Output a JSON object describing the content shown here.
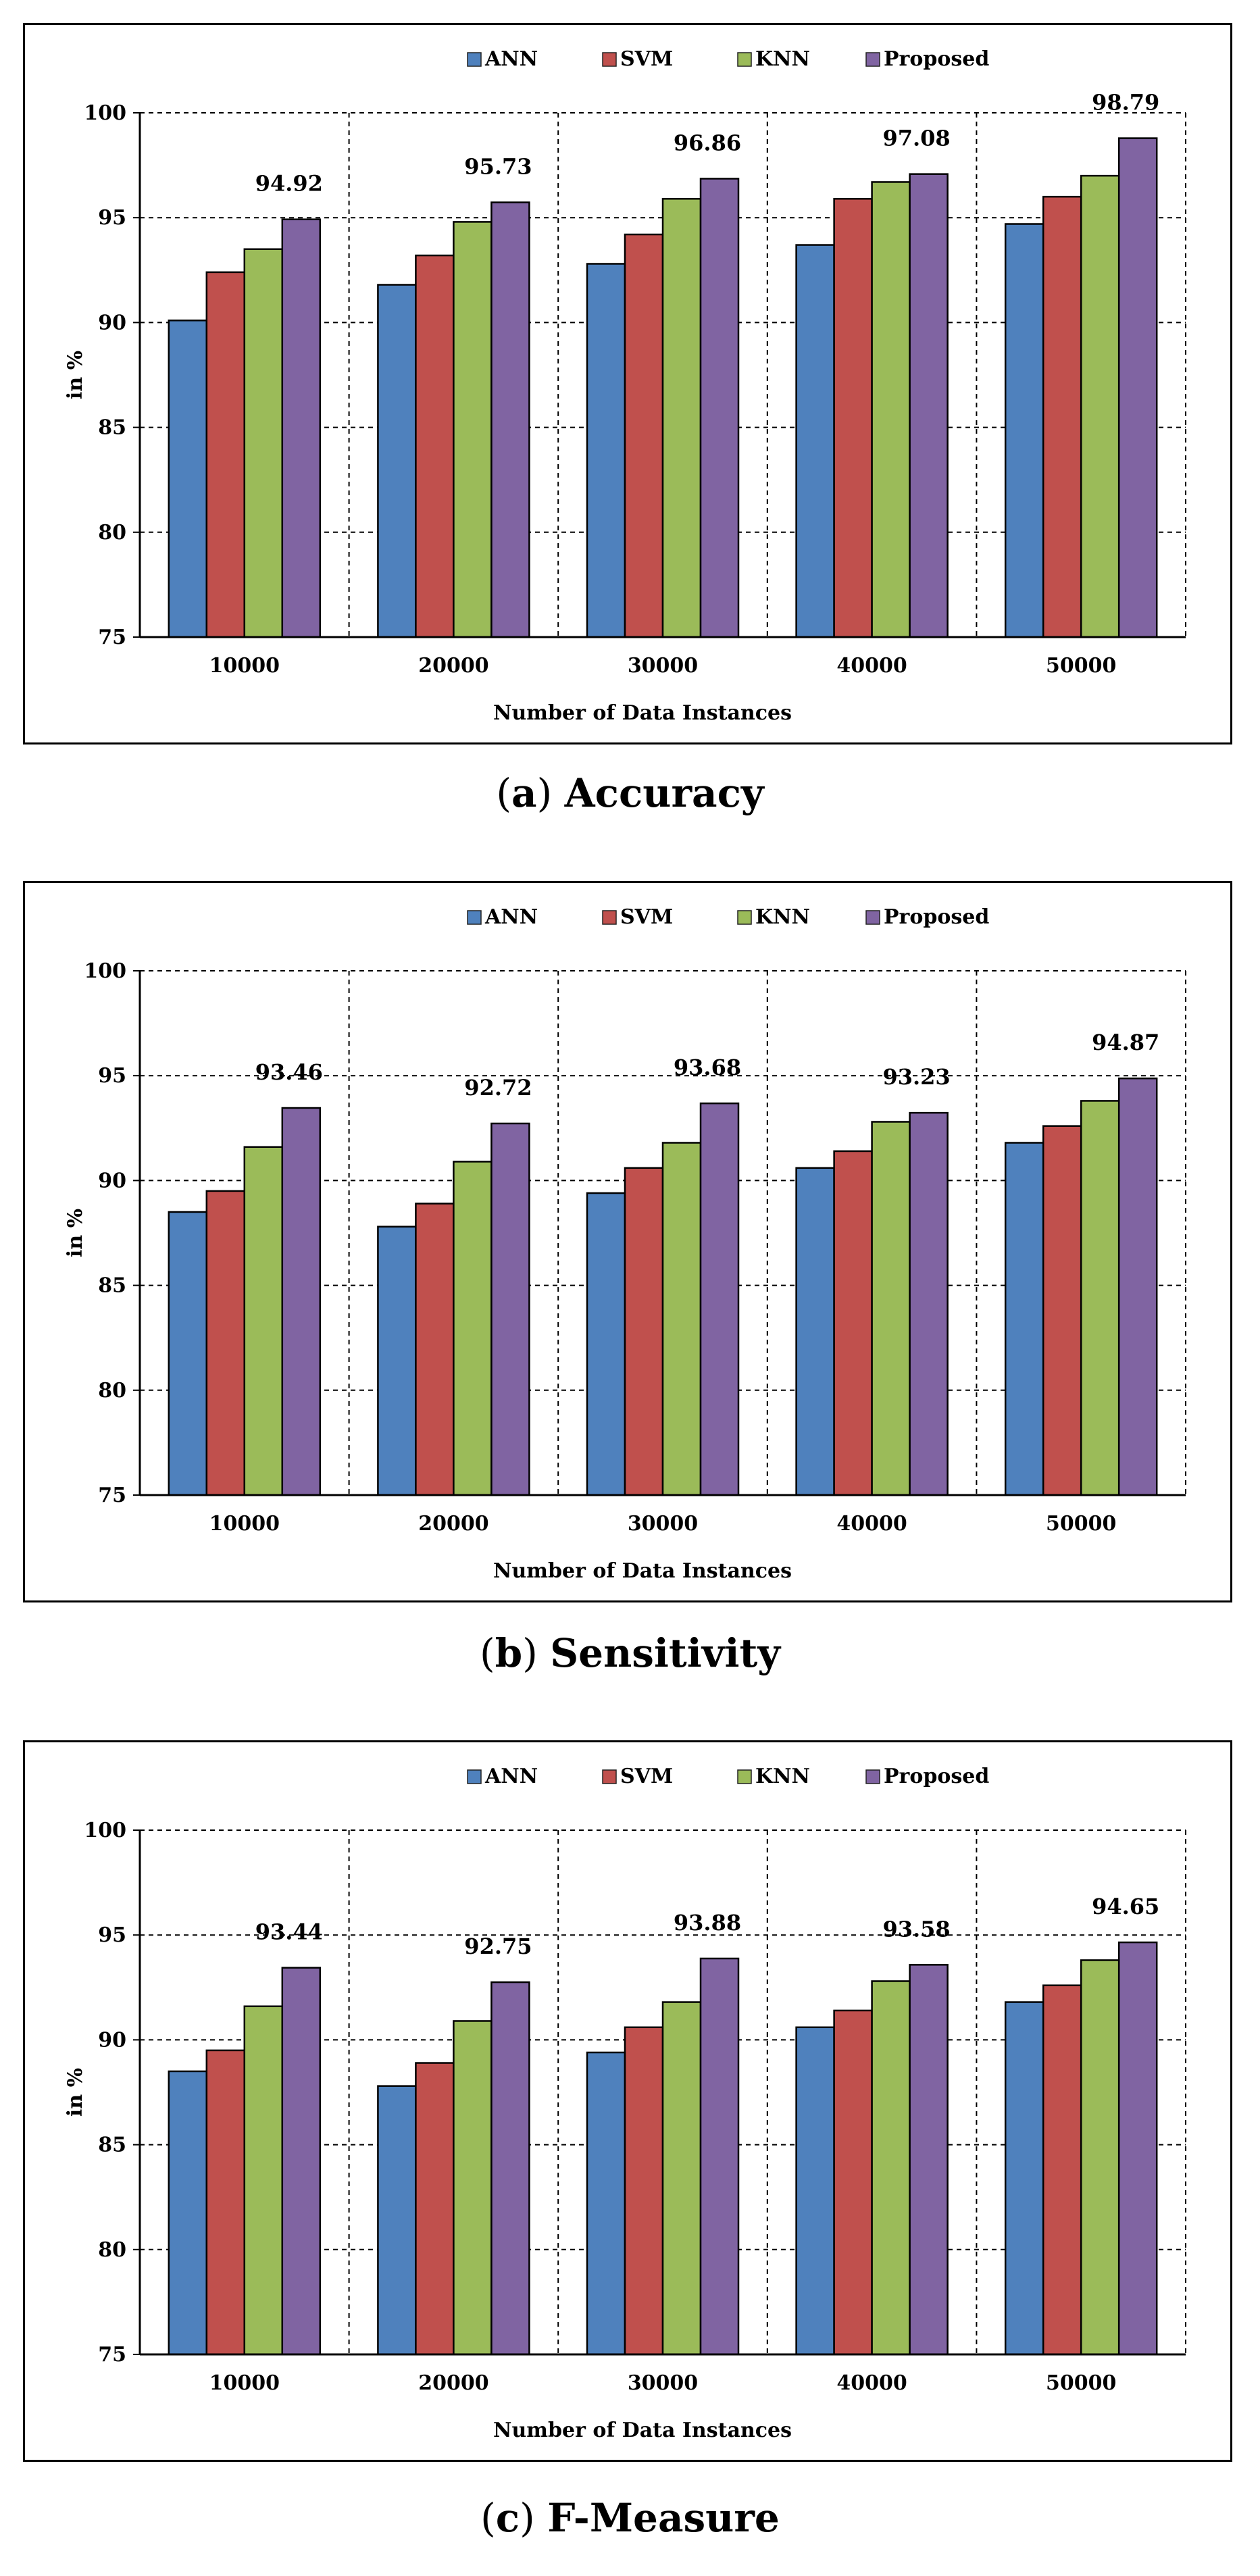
{
  "chart_data": [
    {
      "type": "bar",
      "caption_letter": "a",
      "caption_name": "Accuracy",
      "categories": [
        "10000",
        "20000",
        "30000",
        "40000",
        "50000"
      ],
      "series": [
        {
          "name": "ANN",
          "color": "#4f81bd",
          "values": [
            90.1,
            91.8,
            92.8,
            93.7,
            94.7
          ]
        },
        {
          "name": "SVM",
          "color": "#c0504d",
          "values": [
            92.4,
            93.2,
            94.2,
            95.9,
            96.0
          ]
        },
        {
          "name": "KNN",
          "color": "#9bbb59",
          "values": [
            93.5,
            94.8,
            95.9,
            96.7,
            97.0
          ]
        },
        {
          "name": "Proposed",
          "color": "#8064a2",
          "values": [
            94.92,
            95.73,
            96.86,
            97.08,
            98.79
          ]
        }
      ],
      "data_labels": [
        "94.92",
        "95.73",
        "96.86",
        "97.08",
        "98.79"
      ],
      "xlabel": "Number  of Data Instances",
      "ylabel": "in %",
      "ylim": [
        75,
        100
      ],
      "yticks": [
        "75",
        "80",
        "85",
        "90",
        "95",
        "100"
      ],
      "legend": "top-center",
      "grid": "dashed"
    },
    {
      "type": "bar",
      "caption_letter": "b",
      "caption_name": "Sensitivity",
      "categories": [
        "10000",
        "20000",
        "30000",
        "40000",
        "50000"
      ],
      "series": [
        {
          "name": "ANN",
          "color": "#4f81bd",
          "values": [
            88.5,
            87.8,
            89.4,
            90.6,
            91.8
          ]
        },
        {
          "name": "SVM",
          "color": "#c0504d",
          "values": [
            89.5,
            88.9,
            90.6,
            91.4,
            92.6
          ]
        },
        {
          "name": "KNN",
          "color": "#9bbb59",
          "values": [
            91.6,
            90.9,
            91.8,
            92.8,
            93.8
          ]
        },
        {
          "name": "Proposed",
          "color": "#8064a2",
          "values": [
            93.46,
            92.72,
            93.68,
            93.23,
            94.87
          ]
        }
      ],
      "data_labels": [
        "93.46",
        "92.72",
        "93.68",
        "93.23",
        "94.87"
      ],
      "xlabel": "Number  of Data Instances",
      "ylabel": "in %",
      "ylim": [
        75,
        100
      ],
      "yticks": [
        "75",
        "80",
        "85",
        "90",
        "95",
        "100"
      ],
      "legend": "top-center",
      "grid": "dashed"
    },
    {
      "type": "bar",
      "caption_letter": "c",
      "caption_name": "F-Measure",
      "categories": [
        "10000",
        "20000",
        "30000",
        "40000",
        "50000"
      ],
      "series": [
        {
          "name": "ANN",
          "color": "#4f81bd",
          "values": [
            88.5,
            87.8,
            89.4,
            90.6,
            91.8
          ]
        },
        {
          "name": "SVM",
          "color": "#c0504d",
          "values": [
            89.5,
            88.9,
            90.6,
            91.4,
            92.6
          ]
        },
        {
          "name": "KNN",
          "color": "#9bbb59",
          "values": [
            91.6,
            90.9,
            91.8,
            92.8,
            93.8
          ]
        },
        {
          "name": "Proposed",
          "color": "#8064a2",
          "values": [
            93.44,
            92.75,
            93.88,
            93.58,
            94.65
          ]
        }
      ],
      "data_labels": [
        "93.44",
        "92.75",
        "93.88",
        "93.58",
        "94.65"
      ],
      "xlabel": "Number  of Data Instances",
      "ylabel": "in %",
      "ylim": [
        75,
        100
      ],
      "yticks": [
        "75",
        "80",
        "85",
        "90",
        "95",
        "100"
      ],
      "legend": "top-center",
      "grid": "dashed"
    }
  ]
}
